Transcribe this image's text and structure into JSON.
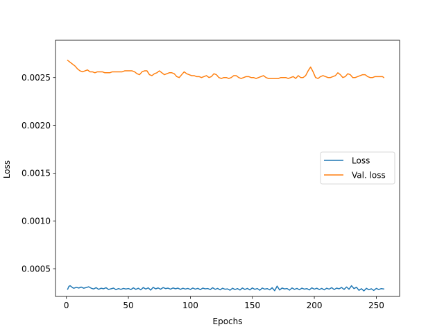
{
  "chart_data": {
    "type": "line",
    "title": "",
    "xlabel": "Epochs",
    "ylabel": "Loss",
    "xlim": [
      -8.8,
      268.8
    ],
    "ylim": [
      0.00021,
      0.00289
    ],
    "xticks": [
      0,
      50,
      100,
      150,
      200,
      250
    ],
    "yticks": [
      0.0005,
      0.001,
      0.0015,
      0.002,
      0.0025
    ],
    "ytick_labels": [
      "0.0005",
      "0.0010",
      "0.0015",
      "0.0020",
      "0.0025"
    ],
    "grid": false,
    "legend_position": "center-right",
    "series": [
      {
        "name": "Loss",
        "color": "#1f77b4",
        "x": [
          1,
          2,
          3,
          4,
          5,
          6,
          8,
          10,
          12,
          14,
          16,
          18,
          20,
          22,
          24,
          26,
          28,
          30,
          32,
          34,
          36,
          38,
          40,
          42,
          44,
          46,
          48,
          50,
          52,
          54,
          56,
          58,
          60,
          62,
          64,
          66,
          68,
          70,
          72,
          74,
          76,
          78,
          80,
          82,
          84,
          86,
          88,
          90,
          92,
          94,
          96,
          98,
          100,
          102,
          104,
          106,
          108,
          110,
          112,
          114,
          116,
          118,
          120,
          122,
          124,
          126,
          128,
          130,
          132,
          134,
          136,
          138,
          140,
          142,
          144,
          146,
          148,
          150,
          152,
          154,
          156,
          158,
          160,
          162,
          164,
          166,
          168,
          170,
          172,
          174,
          176,
          178,
          180,
          182,
          184,
          186,
          188,
          190,
          192,
          194,
          196,
          198,
          200,
          202,
          204,
          206,
          208,
          210,
          212,
          214,
          216,
          218,
          220,
          222,
          224,
          226,
          228,
          230,
          232,
          234,
          236,
          238,
          240,
          242,
          244,
          246,
          248,
          250,
          252,
          254,
          256
        ],
        "y": [
          0.000285,
          0.000315,
          0.000322,
          0.000312,
          0.000301,
          0.000296,
          0.000305,
          0.000298,
          0.000308,
          0.000296,
          0.000303,
          0.000311,
          0.000296,
          0.000288,
          0.000302,
          0.000284,
          0.000296,
          0.00029,
          0.000301,
          0.000283,
          0.00029,
          0.000297,
          0.000281,
          0.000292,
          0.000284,
          0.000294,
          0.000287,
          0.000293,
          0.000282,
          0.0003,
          0.000284,
          0.000296,
          0.000279,
          0.000303,
          0.000287,
          0.0003,
          0.000276,
          0.000305,
          0.000289,
          0.000299,
          0.000285,
          0.000303,
          0.000292,
          0.000297,
          0.000286,
          0.000299,
          0.00029,
          0.000297,
          0.000284,
          0.000296,
          0.000287,
          0.000294,
          0.000283,
          0.000298,
          0.000286,
          0.000295,
          0.000281,
          0.000297,
          0.000289,
          0.000293,
          0.000282,
          0.000301,
          0.000284,
          0.000294,
          0.000279,
          0.000296,
          0.000285,
          0.000289,
          0.000275,
          0.000296,
          0.000282,
          0.000292,
          0.000277,
          0.000298,
          0.000283,
          0.000294,
          0.000278,
          0.000299,
          0.000284,
          0.000293,
          0.000275,
          0.000298,
          0.000286,
          0.000292,
          0.000279,
          0.000301,
          0.00027,
          0.000318,
          0.000277,
          0.000298,
          0.000288,
          0.000293,
          0.000276,
          0.000299,
          0.000284,
          0.000294,
          0.00028,
          0.000297,
          0.000286,
          0.000292,
          0.000278,
          0.0003,
          0.000286,
          0.000296,
          0.000282,
          0.000294,
          0.000279,
          0.000296,
          0.000286,
          0.000302,
          0.000282,
          0.000297,
          0.00029,
          0.000304,
          0.000283,
          0.000309,
          0.000285,
          0.000322,
          0.000292,
          0.000306,
          0.000274,
          0.000291,
          0.000268,
          0.000295,
          0.00028,
          0.00029,
          0.000273,
          0.000294,
          0.000282,
          0.000292,
          0.000288
        ]
      },
      {
        "name": "Val. loss",
        "color": "#ff7f0e",
        "x": [
          1,
          3,
          5,
          7,
          9,
          11,
          13,
          15,
          17,
          19,
          21,
          23,
          25,
          27,
          29,
          31,
          33,
          35,
          37,
          39,
          41,
          43,
          45,
          47,
          49,
          51,
          53,
          55,
          57,
          59,
          61,
          63,
          65,
          67,
          69,
          71,
          73,
          75,
          77,
          79,
          81,
          83,
          85,
          87,
          89,
          91,
          93,
          95,
          97,
          99,
          101,
          103,
          105,
          107,
          109,
          111,
          113,
          115,
          117,
          119,
          121,
          123,
          125,
          127,
          129,
          131,
          133,
          135,
          137,
          139,
          141,
          143,
          145,
          147,
          149,
          151,
          153,
          155,
          157,
          159,
          161,
          163,
          165,
          167,
          169,
          171,
          173,
          175,
          177,
          179,
          181,
          183,
          185,
          187,
          189,
          191,
          193,
          195,
          197,
          199,
          201,
          203,
          205,
          207,
          209,
          211,
          213,
          215,
          217,
          219,
          221,
          223,
          225,
          227,
          229,
          231,
          233,
          235,
          237,
          239,
          241,
          243,
          245,
          247,
          249,
          251,
          253,
          255,
          256
        ],
        "y": [
          0.00268,
          0.00266,
          0.00264,
          0.00262,
          0.00259,
          0.00257,
          0.00256,
          0.00257,
          0.00258,
          0.00256,
          0.00256,
          0.00255,
          0.00256,
          0.00256,
          0.00256,
          0.00255,
          0.00255,
          0.00255,
          0.00256,
          0.00256,
          0.00256,
          0.00256,
          0.00256,
          0.00257,
          0.00257,
          0.00257,
          0.00257,
          0.00256,
          0.00254,
          0.00253,
          0.00256,
          0.00257,
          0.00257,
          0.00253,
          0.00252,
          0.00254,
          0.00255,
          0.00257,
          0.00255,
          0.00253,
          0.00254,
          0.00255,
          0.00255,
          0.00254,
          0.00251,
          0.0025,
          0.00253,
          0.00256,
          0.00254,
          0.00253,
          0.00252,
          0.00252,
          0.00251,
          0.00251,
          0.0025,
          0.00251,
          0.00252,
          0.0025,
          0.00251,
          0.00254,
          0.00253,
          0.0025,
          0.00249,
          0.0025,
          0.0025,
          0.00249,
          0.0025,
          0.00252,
          0.00252,
          0.0025,
          0.00249,
          0.0025,
          0.00251,
          0.00251,
          0.0025,
          0.0025,
          0.00249,
          0.0025,
          0.00251,
          0.00252,
          0.0025,
          0.00249,
          0.00249,
          0.00249,
          0.00249,
          0.00249,
          0.0025,
          0.0025,
          0.0025,
          0.00249,
          0.0025,
          0.00251,
          0.00249,
          0.00252,
          0.0025,
          0.0025,
          0.00252,
          0.00257,
          0.00261,
          0.00256,
          0.0025,
          0.00249,
          0.00251,
          0.00252,
          0.00251,
          0.0025,
          0.0025,
          0.00251,
          0.00252,
          0.00255,
          0.00253,
          0.0025,
          0.00251,
          0.00254,
          0.00253,
          0.0025,
          0.0025,
          0.00251,
          0.00252,
          0.00253,
          0.00253,
          0.00251,
          0.0025,
          0.0025,
          0.00251,
          0.00251,
          0.00251,
          0.00251,
          0.0025
        ]
      }
    ]
  }
}
